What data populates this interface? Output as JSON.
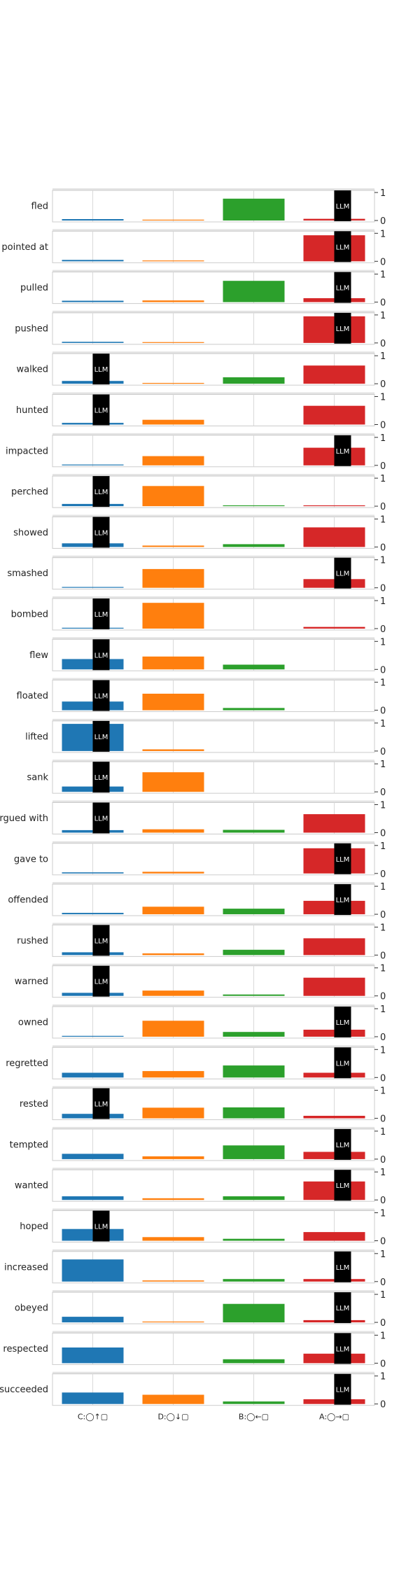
{
  "chart_data": {
    "type": "bar",
    "layout": "small-multiples",
    "categories": [
      "C:◯↑▢",
      "D:◯↓▢",
      "B:◯←▢",
      "A:◯→▢"
    ],
    "colors": [
      "#1f77b4",
      "#ff7f0e",
      "#2ca02c",
      "#d62728"
    ],
    "ylim": [
      0,
      1
    ],
    "yticks": [
      "0",
      "1"
    ],
    "grid": true,
    "marker_label": "LLM",
    "panels": [
      {
        "verb": "fled",
        "values": [
          0.05,
          0.02,
          0.78,
          0.06
        ],
        "llm": 3
      },
      {
        "verb": "pointed at",
        "values": [
          0.05,
          0.01,
          0.0,
          0.93
        ],
        "llm": 3
      },
      {
        "verb": "pulled",
        "values": [
          0.05,
          0.06,
          0.76,
          0.14
        ],
        "llm": 3
      },
      {
        "verb": "pushed",
        "values": [
          0.04,
          0.01,
          0.0,
          0.95
        ],
        "llm": 3
      },
      {
        "verb": "walked",
        "values": [
          0.1,
          0.02,
          0.23,
          0.65
        ],
        "llm": 0
      },
      {
        "verb": "hunted",
        "values": [
          0.06,
          0.17,
          0.0,
          0.67
        ],
        "llm": 0
      },
      {
        "verb": "impacted",
        "values": [
          0.03,
          0.33,
          0.0,
          0.63
        ],
        "llm": 3
      },
      {
        "verb": "perched",
        "values": [
          0.08,
          0.72,
          0.02,
          0.02
        ],
        "llm": 0
      },
      {
        "verb": "showed",
        "values": [
          0.13,
          0.05,
          0.1,
          0.7
        ],
        "llm": 0
      },
      {
        "verb": "smashed",
        "values": [
          0.02,
          0.67,
          0.0,
          0.31
        ],
        "llm": 3
      },
      {
        "verb": "bombed",
        "values": [
          0.02,
          0.92,
          0.0,
          0.06
        ],
        "llm": 0
      },
      {
        "verb": "flew",
        "values": [
          0.37,
          0.46,
          0.17,
          0.0
        ],
        "llm": 0
      },
      {
        "verb": "floated",
        "values": [
          0.31,
          0.59,
          0.08,
          0.0
        ],
        "llm": 0
      },
      {
        "verb": "lifted",
        "values": [
          0.97,
          0.06,
          0.0,
          0.0
        ],
        "llm": 0
      },
      {
        "verb": "sank",
        "values": [
          0.19,
          0.7,
          0.0,
          0.0
        ],
        "llm": 0
      },
      {
        "verb": "argued with",
        "values": [
          0.09,
          0.12,
          0.1,
          0.66
        ],
        "llm": 0
      },
      {
        "verb": "gave to",
        "values": [
          0.04,
          0.06,
          0.0,
          0.9
        ],
        "llm": 3
      },
      {
        "verb": "offended",
        "values": [
          0.05,
          0.27,
          0.2,
          0.48
        ],
        "llm": 3
      },
      {
        "verb": "rushed",
        "values": [
          0.1,
          0.06,
          0.19,
          0.6
        ],
        "llm": 0
      },
      {
        "verb": "warned",
        "values": [
          0.11,
          0.19,
          0.05,
          0.65
        ],
        "llm": 0
      },
      {
        "verb": "owned",
        "values": [
          0.02,
          0.57,
          0.17,
          0.25
        ],
        "llm": 3
      },
      {
        "verb": "regretted",
        "values": [
          0.17,
          0.23,
          0.43,
          0.17
        ],
        "llm": 3
      },
      {
        "verb": "rested",
        "values": [
          0.16,
          0.38,
          0.39,
          0.09
        ],
        "llm": 0
      },
      {
        "verb": "tempted",
        "values": [
          0.19,
          0.1,
          0.49,
          0.26
        ],
        "llm": 3
      },
      {
        "verb": "wanted",
        "values": [
          0.13,
          0.06,
          0.13,
          0.66
        ],
        "llm": 3
      },
      {
        "verb": "hoped",
        "values": [
          0.42,
          0.13,
          0.07,
          0.31
        ],
        "llm": 0
      },
      {
        "verb": "increased",
        "values": [
          0.79,
          0.04,
          0.09,
          0.09
        ],
        "llm": 3
      },
      {
        "verb": "obeyed",
        "values": [
          0.2,
          0.02,
          0.66,
          0.08
        ],
        "llm": 3
      },
      {
        "verb": "respected",
        "values": [
          0.56,
          0.0,
          0.14,
          0.34
        ],
        "llm": 3
      },
      {
        "verb": "succeeded",
        "values": [
          0.41,
          0.33,
          0.09,
          0.17
        ],
        "llm": 3
      }
    ]
  }
}
